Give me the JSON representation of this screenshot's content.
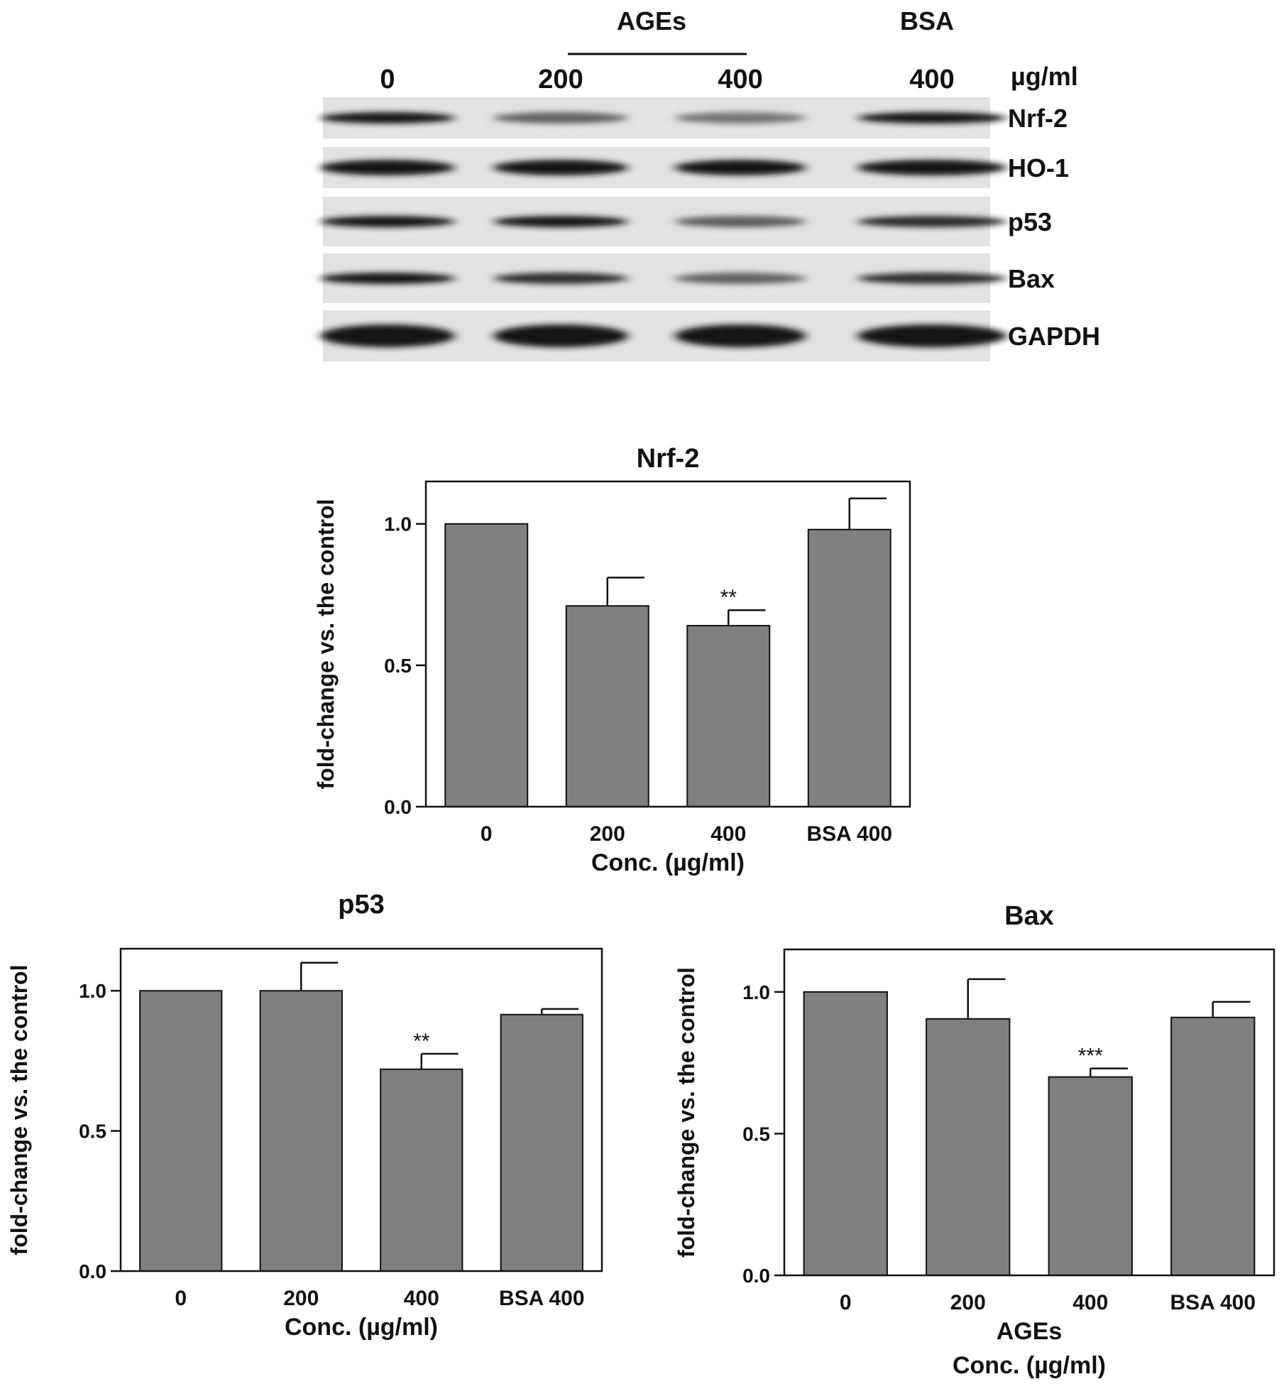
{
  "blot": {
    "header_ages": "AGEs",
    "header_bsa": "BSA",
    "unit": "µg/ml",
    "lanes": [
      "0",
      "200",
      "400",
      "400"
    ],
    "rows": [
      {
        "name": "Nrf-2",
        "intensity": [
          1.0,
          0.7,
          0.63,
          0.98
        ]
      },
      {
        "name": "HO-1",
        "intensity": [
          1.0,
          1.0,
          1.0,
          1.0
        ]
      },
      {
        "name": "p53",
        "intensity": [
          1.0,
          1.0,
          0.72,
          0.92
        ]
      },
      {
        "name": "Bax",
        "intensity": [
          1.0,
          0.9,
          0.7,
          0.9
        ]
      },
      {
        "name": "GAPDH",
        "intensity": [
          1.0,
          1.0,
          1.0,
          1.0
        ]
      }
    ]
  },
  "chart_data": [
    {
      "type": "bar",
      "title": "Nrf-2",
      "categories": [
        "0",
        "200",
        "400",
        "BSA 400"
      ],
      "values": [
        1.0,
        0.71,
        0.64,
        0.98
      ],
      "errors": [
        0,
        0.1,
        0.055,
        0.11
      ],
      "annotations": [
        "",
        "",
        "**",
        ""
      ],
      "ylim": [
        0,
        1.15
      ],
      "yticks": [
        "0.0",
        "0.5",
        "1.0"
      ],
      "ylabel": "fold-change vs. the control",
      "xlabel": "Conc. (µg/ml)",
      "xlabel2": "",
      "bar_color": "#808080"
    },
    {
      "type": "bar",
      "title": "p53",
      "categories": [
        "0",
        "200",
        "400",
        "BSA 400"
      ],
      "values": [
        1.0,
        1.0,
        0.72,
        0.915
      ],
      "errors": [
        0,
        0.1,
        0.055,
        0.02
      ],
      "annotations": [
        "",
        "",
        "**",
        ""
      ],
      "ylim": [
        0,
        1.15
      ],
      "yticks": [
        "0.0",
        "0.5",
        "1.0"
      ],
      "ylabel": "fold-change vs. the control",
      "xlabel": "Conc. (µg/ml)",
      "xlabel2": "",
      "bar_color": "#808080"
    },
    {
      "type": "bar",
      "title": "Bax",
      "categories": [
        "0",
        "200",
        "400",
        "BSA 400"
      ],
      "values": [
        1.0,
        0.905,
        0.7,
        0.91
      ],
      "errors": [
        0,
        0.14,
        0.03,
        0.055
      ],
      "annotations": [
        "",
        "",
        "***",
        ""
      ],
      "ylim": [
        0,
        1.15
      ],
      "yticks": [
        "0.0",
        "0.5",
        "1.0"
      ],
      "ylabel": "fold-change vs. the control",
      "xlabel": "AGEs",
      "xlabel2": "Conc. (µg/ml)",
      "bar_color": "#808080"
    }
  ]
}
